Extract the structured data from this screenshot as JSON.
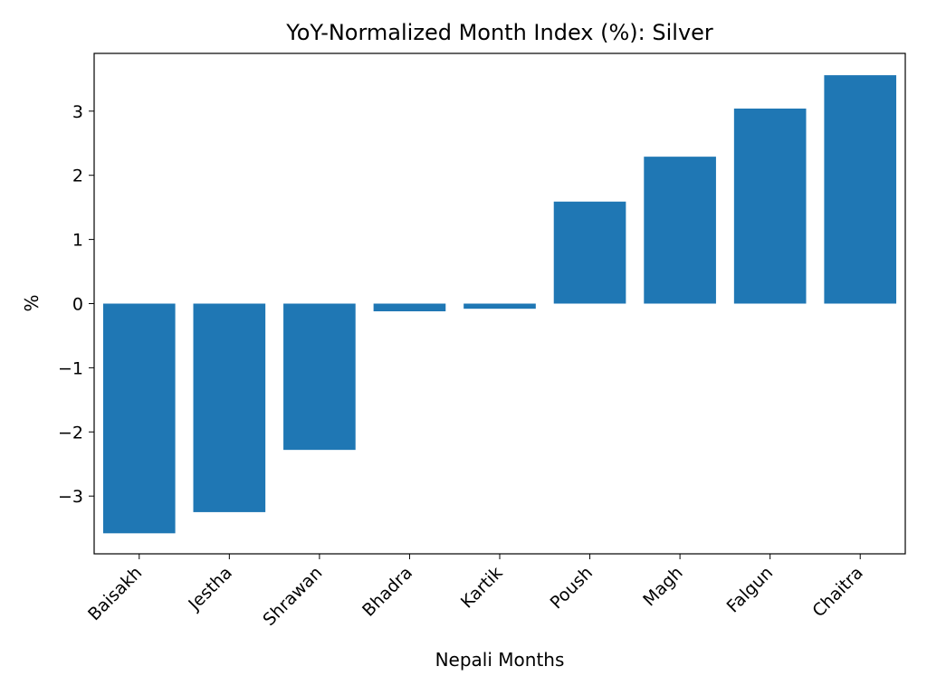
{
  "chart_data": {
    "type": "bar",
    "title": "YoY-Normalized Month Index (%): Silver",
    "xlabel": "Nepali Months",
    "ylabel": "%",
    "categories": [
      "Baisakh",
      "Jestha",
      "Shrawan",
      "Bhadra",
      "Kartik",
      "Poush",
      "Magh",
      "Falgun",
      "Chaitra"
    ],
    "values": [
      -3.58,
      -3.25,
      -2.28,
      -0.12,
      -0.08,
      1.59,
      2.29,
      3.04,
      3.56
    ],
    "ylim": [
      -3.9,
      3.9
    ],
    "yticks": [
      -3,
      -2,
      -1,
      0,
      1,
      2,
      3
    ],
    "ytick_labels": [
      "−3",
      "−2",
      "−1",
      "0",
      "1",
      "2",
      "3"
    ],
    "bar_color": "#1f77b4",
    "grid": false,
    "legend": "none"
  }
}
